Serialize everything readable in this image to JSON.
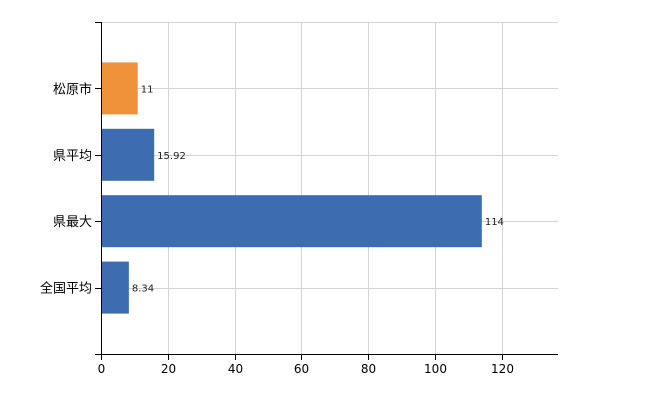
{
  "chart_data": {
    "type": "bar",
    "orientation": "horizontal",
    "categories": [
      "松原市",
      "県平均",
      "県最大",
      "全国平均"
    ],
    "values": [
      11,
      15.92,
      114,
      8.34
    ],
    "data_labels": [
      "11",
      "15.92",
      "114",
      "8.34"
    ],
    "bar_colors": [
      "#F0923A",
      "#3D6CB0",
      "#3D6CB0",
      "#3D6CB0"
    ],
    "xticks": [
      0,
      20,
      40,
      60,
      80,
      100,
      120
    ],
    "xlim": [
      0,
      136.8
    ],
    "grid": true,
    "title": "",
    "xlabel": "",
    "ylabel": ""
  }
}
